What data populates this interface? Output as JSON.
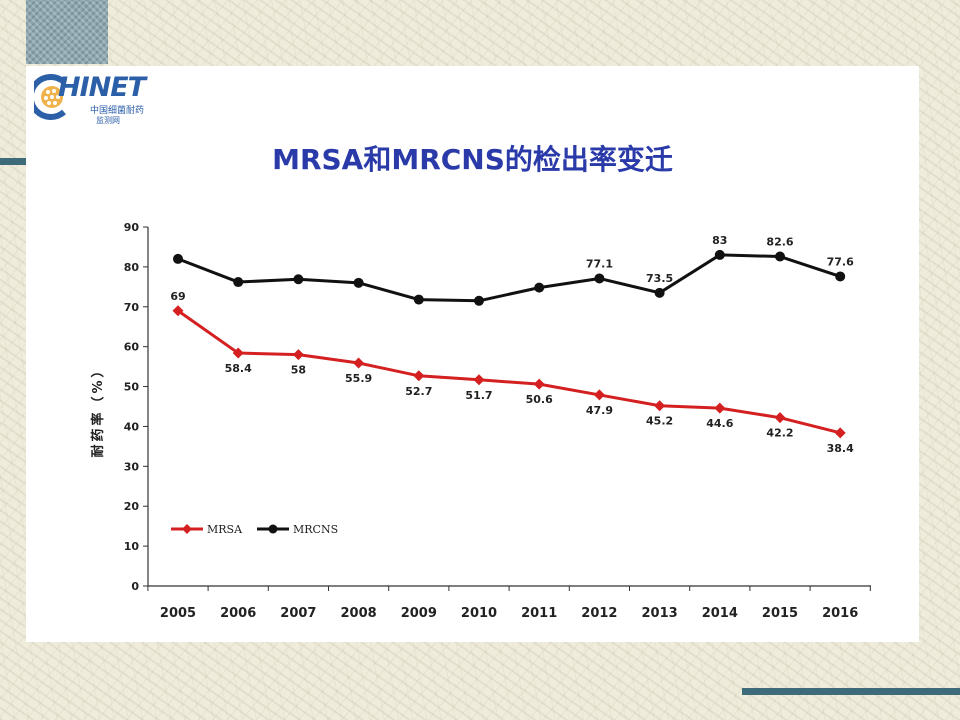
{
  "logo": {
    "word": "HINET",
    "sub_line1": "中国细菌耐药",
    "sub_line2": "监测网"
  },
  "colors": {
    "mrsa": "#d42020",
    "mrcns": "#111111",
    "title": "#2a3aa8",
    "accent_bar": "#3d6b7a"
  },
  "chart_data": {
    "type": "line",
    "title": "MRSA和MRCNS的检出率变迁",
    "xlabel": "",
    "ylabel": "耐药率（%）",
    "ylim": [
      0,
      90
    ],
    "yticks": [
      0,
      10,
      20,
      30,
      40,
      50,
      60,
      70,
      80,
      90
    ],
    "categories": [
      "2005",
      "2006",
      "2007",
      "2008",
      "2009",
      "2010",
      "2011",
      "2012",
      "2013",
      "2014",
      "2015",
      "2016"
    ],
    "legend_position": "lower-left",
    "grid": false,
    "series": [
      {
        "name": "MRSA",
        "color": "#d42020",
        "marker": "diamond",
        "values": [
          69,
          58.4,
          58,
          55.9,
          52.7,
          51.7,
          50.6,
          47.9,
          45.2,
          44.6,
          42.2,
          38.4
        ],
        "labels": [
          "69",
          "58.4",
          "58",
          "55.9",
          "52.7",
          "51.7",
          "50.6",
          "47.9",
          "45.2",
          "44.6",
          "42.2",
          "38.4"
        ]
      },
      {
        "name": "MRCNS",
        "color": "#111111",
        "marker": "circle",
        "values": [
          82,
          76.2,
          76.9,
          76,
          71.8,
          71.5,
          74.8,
          77.1,
          73.5,
          83,
          82.6,
          77.6
        ],
        "labels": [
          "",
          "",
          "",
          "",
          "",
          "",
          "",
          "77.1",
          "73.5",
          "83",
          "82.6",
          "77.6"
        ]
      }
    ]
  }
}
